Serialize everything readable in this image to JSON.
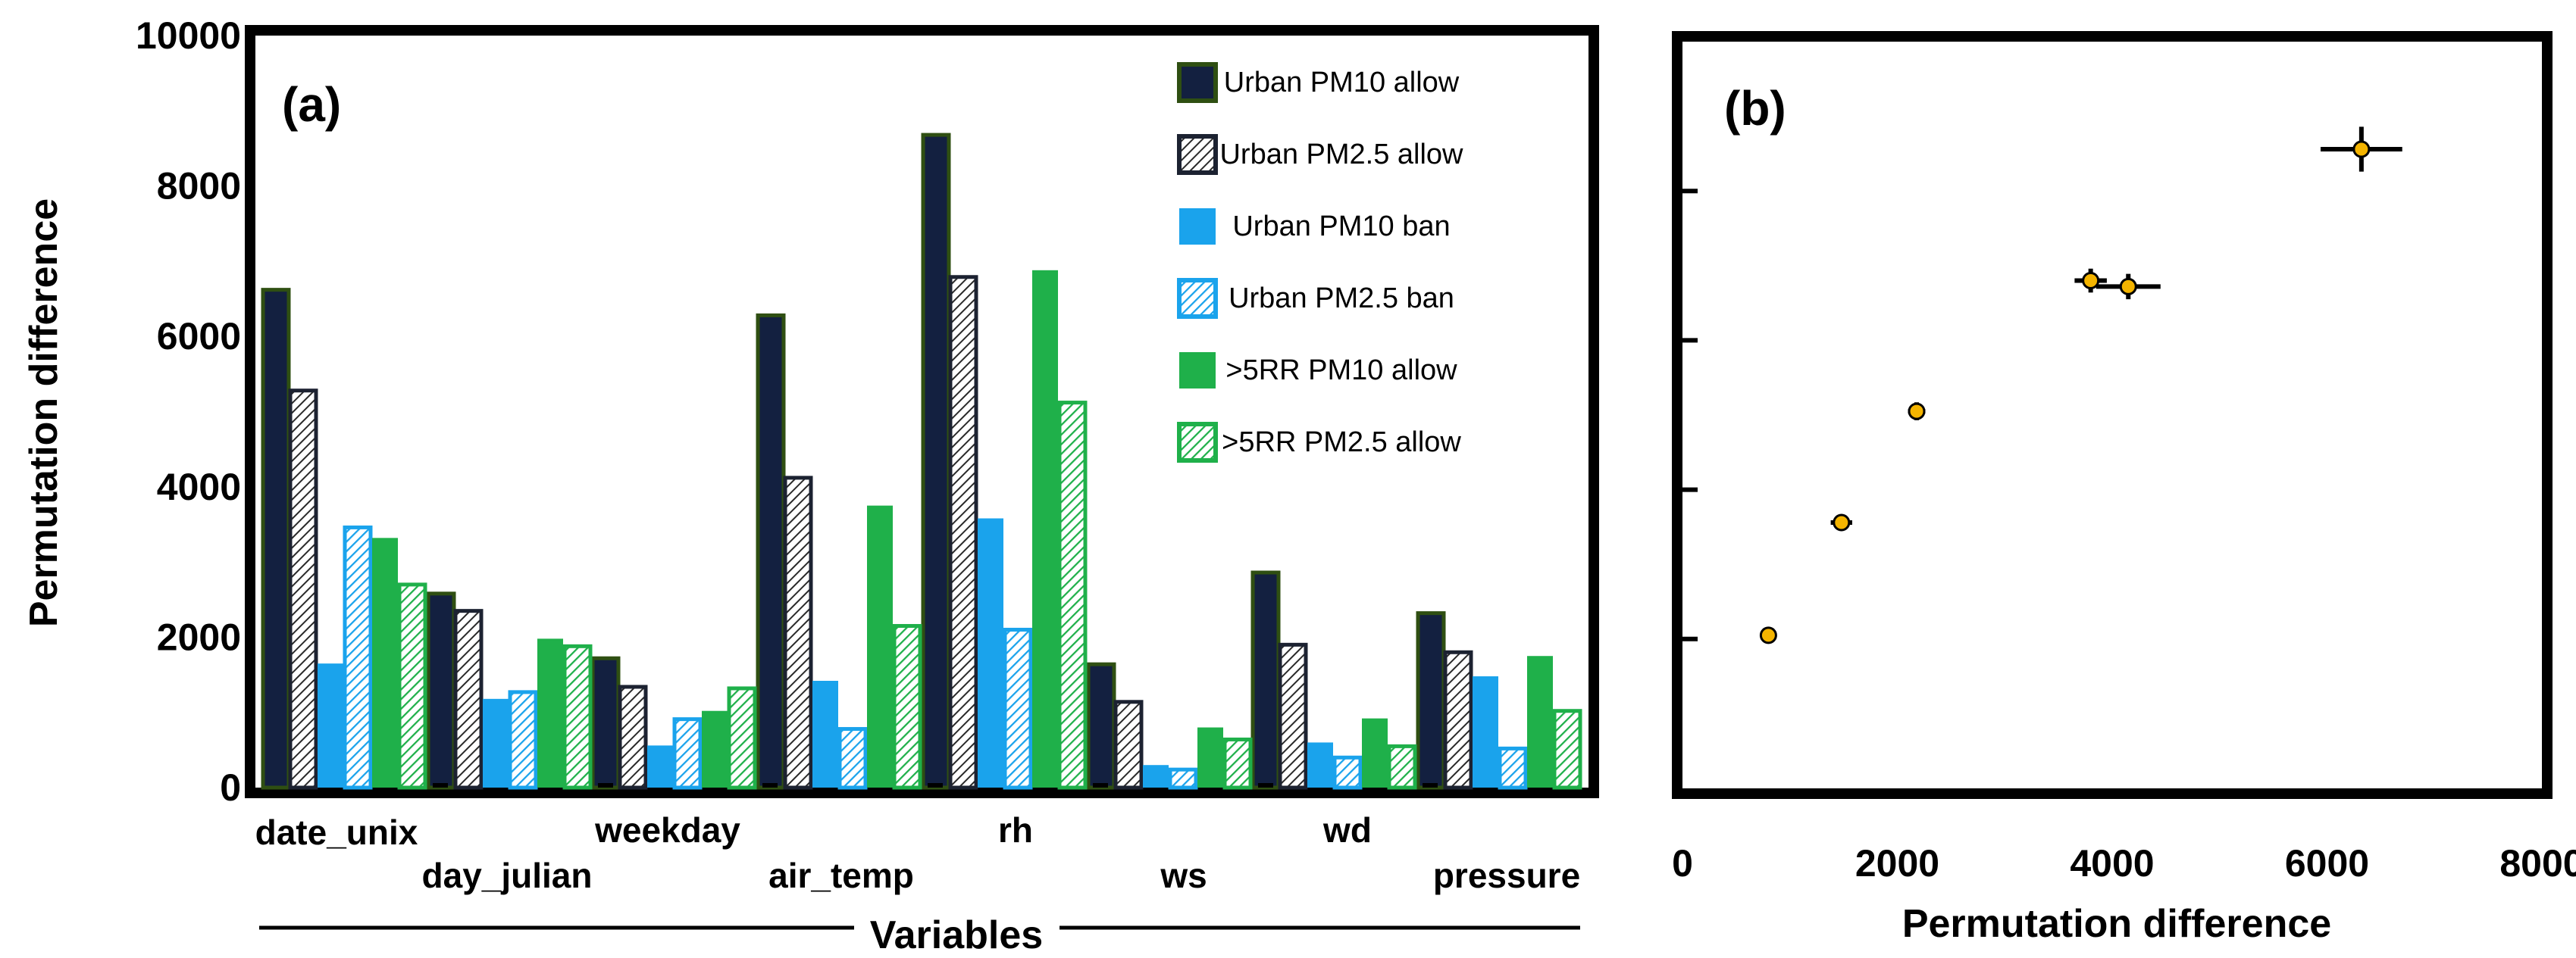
{
  "colors": {
    "urban_pm10": "#132040",
    "urban_pm10_stroke": "#2f4f12",
    "hatch_dark_stroke": "#1c2231",
    "ban_blue": "#1aa3ec",
    "green": "#1fb04a",
    "marker": "#f4b400"
  },
  "chart_data": [
    {
      "panel": "(a)",
      "type": "bar",
      "title": "",
      "xlabel": "Variables",
      "ylabel": "Permutation difference",
      "ylim": [
        0,
        10000
      ],
      "yticks": [
        "0",
        "2000",
        "4000",
        "6000",
        "8000",
        "10000"
      ],
      "categories": [
        "date_unix",
        "day_julian",
        "weekday",
        "air_temp",
        "rh",
        "ws",
        "wd",
        "pressure"
      ],
      "series": [
        {
          "name": "Urban PM10 allow",
          "values": [
            6620,
            2580,
            1720,
            6280,
            8680,
            1640,
            2860,
            2320
          ]
        },
        {
          "name": "Urban PM2.5 allow",
          "values": [
            5280,
            2350,
            1340,
            4120,
            6790,
            1140,
            1900,
            1800
          ]
        },
        {
          "name": "Urban PM10 ban",
          "values": [
            1650,
            1180,
            560,
            1420,
            3580,
            300,
            600,
            1480
          ]
        },
        {
          "name": "Urban PM2.5 ban",
          "values": [
            3460,
            1270,
            910,
            780,
            2100,
            240,
            400,
            520
          ]
        },
        {
          "name": ">5RR PM10 allow",
          "values": [
            3320,
            1980,
            1020,
            3750,
            6880,
            800,
            920,
            1750
          ]
        },
        {
          "name": ">5RR PM2.5 allow",
          "values": [
            2700,
            1880,
            1320,
            2150,
            5120,
            640,
            550,
            1020
          ]
        }
      ],
      "legend_position": "top-right"
    },
    {
      "panel": "(b)",
      "type": "scatter",
      "xlabel": "Permutation difference",
      "ylabel": "",
      "xlim": [
        0,
        8000
      ],
      "ylim": [
        0,
        10000
      ],
      "xticks": [
        "0",
        "2000",
        "4000",
        "6000",
        "8000"
      ],
      "points": [
        {
          "x": 800,
          "y": 2050,
          "xerr": 60,
          "yerr": 80
        },
        {
          "x": 1480,
          "y": 3560,
          "xerr": 100,
          "yerr": 100
        },
        {
          "x": 2180,
          "y": 5050,
          "xerr": 80,
          "yerr": 120
        },
        {
          "x": 3800,
          "y": 6800,
          "xerr": 150,
          "yerr": 160
        },
        {
          "x": 4150,
          "y": 6720,
          "xerr": 300,
          "yerr": 170
        },
        {
          "x": 6320,
          "y": 8560,
          "xerr": 380,
          "yerr": 300
        }
      ]
    }
  ]
}
